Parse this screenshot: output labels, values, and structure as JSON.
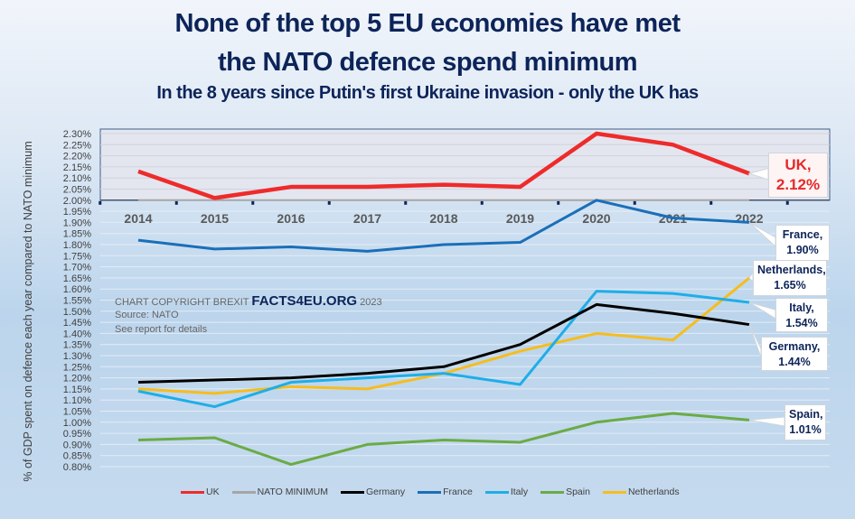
{
  "chart_data": {
    "type": "line",
    "title": "None of the top 5 EU economies have met the NATO defence spend minimum",
    "title_lines": [
      "None of the top 5 EU economies have met",
      "the NATO defence spend minimum"
    ],
    "subtitle": "In the 8 years since Putin's first Ukraine invasion - only the UK has",
    "xlabel": "",
    "ylabel": "% of GDP spent on defence each year compared to NATO minimum",
    "x": [
      "2014",
      "2015",
      "2016",
      "2017",
      "2018",
      "2019",
      "2020",
      "2021",
      "2022"
    ],
    "ylim": [
      0.8,
      2.3
    ],
    "y_ticks": [
      "2.30%",
      "2.25%",
      "2.20%",
      "2.15%",
      "2.10%",
      "2.05%",
      "2.00%",
      "1.95%",
      "1.90%",
      "1.85%",
      "1.80%",
      "1.75%",
      "1.70%",
      "1.65%",
      "1.60%",
      "1.55%",
      "1.50%",
      "1.45%",
      "1.40%",
      "1.35%",
      "1.30%",
      "1.25%",
      "1.20%",
      "1.15%",
      "1.10%",
      "1.05%",
      "1.00%",
      "0.95%",
      "0.90%",
      "0.85%",
      "0.80%"
    ],
    "y_tick_values": [
      2.3,
      2.25,
      2.2,
      2.15,
      2.1,
      2.05,
      2.0,
      1.95,
      1.9,
      1.85,
      1.8,
      1.75,
      1.7,
      1.65,
      1.6,
      1.55,
      1.5,
      1.45,
      1.4,
      1.35,
      1.3,
      1.25,
      1.2,
      1.15,
      1.1,
      1.05,
      1.0,
      0.95,
      0.9,
      0.85,
      0.8
    ],
    "grid": true,
    "legend_position": "bottom",
    "nato_minimum": 2.0,
    "series": [
      {
        "name": "UK",
        "color": "#ee2b2b",
        "values": [
          2.13,
          2.01,
          2.06,
          2.06,
          2.07,
          2.06,
          2.3,
          2.25,
          2.12
        ],
        "label": "UK,",
        "label_value": "2.12%"
      },
      {
        "name": "NATO MINIMUM",
        "color": "#a6a6a6",
        "values": [
          2.0,
          2.0,
          2.0,
          2.0,
          2.0,
          2.0,
          2.0,
          2.0,
          2.0
        ]
      },
      {
        "name": "Germany",
        "color": "#000000",
        "values": [
          1.18,
          1.19,
          1.2,
          1.22,
          1.25,
          1.35,
          1.53,
          1.49,
          1.44
        ],
        "label": "Germany,",
        "label_value": "1.44%"
      },
      {
        "name": "France",
        "color": "#1a6fb8",
        "values": [
          1.82,
          1.78,
          1.79,
          1.77,
          1.8,
          1.81,
          2.0,
          1.92,
          1.9
        ],
        "label": "France,",
        "label_value": "1.90%"
      },
      {
        "name": "Italy",
        "color": "#1eaee8",
        "values": [
          1.14,
          1.07,
          1.18,
          1.2,
          1.22,
          1.17,
          1.59,
          1.58,
          1.54
        ],
        "label": "Italy,",
        "label_value": "1.54%"
      },
      {
        "name": "Spain",
        "color": "#6aab45",
        "values": [
          0.92,
          0.93,
          0.81,
          0.9,
          0.92,
          0.91,
          1.0,
          1.04,
          1.01
        ],
        "label": "Spain,",
        "label_value": "1.01%"
      },
      {
        "name": "Netherlands",
        "color": "#f5bd1f",
        "values": [
          1.15,
          1.13,
          1.16,
          1.15,
          1.22,
          1.32,
          1.4,
          1.37,
          1.65
        ],
        "label": "Netherlands,",
        "label_value": "1.65%"
      }
    ],
    "annotations": {
      "credit_prefix": "CHART COPYRIGHT BREXIT",
      "credit_brand": "FACTS4EU.ORG",
      "credit_year": "2023",
      "source": "Source: NATO",
      "note": "See report for details"
    }
  }
}
